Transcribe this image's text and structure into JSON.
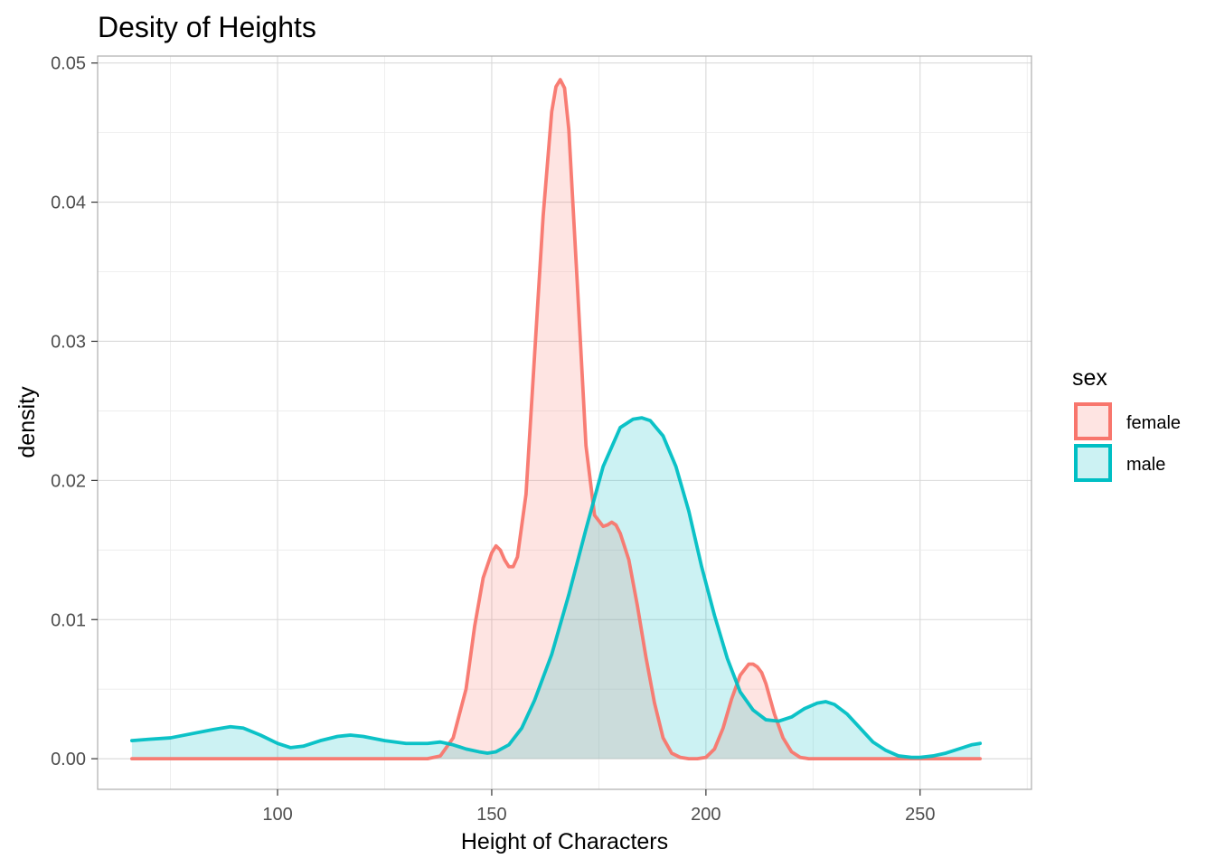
{
  "chart_data": {
    "type": "area",
    "title": "Desity of Heights",
    "xlabel": "Height of Characters",
    "ylabel": "density",
    "xlim": [
      58,
      276
    ],
    "ylim": [
      -0.0022,
      0.0505
    ],
    "xticks": [
      100,
      150,
      200,
      250
    ],
    "xtick_labels": [
      "100",
      "150",
      "200",
      "250"
    ],
    "yticks": [
      0,
      0.01,
      0.02,
      0.03,
      0.04,
      0.05
    ],
    "ytick_labels": [
      "0.00",
      "0.01",
      "0.02",
      "0.03",
      "0.04",
      "0.05"
    ],
    "grid": true,
    "legend": {
      "title": "sex",
      "position": "right",
      "entries": [
        "female",
        "male"
      ]
    },
    "series": [
      {
        "name": "female",
        "color": "#F8766D",
        "fill": "#F8766D",
        "fill_opacity": 0.2,
        "x": [
          66,
          100,
          120,
          135,
          138,
          141,
          144,
          146,
          148,
          150,
          151,
          152,
          153,
          154,
          155,
          156,
          158,
          160,
          162,
          164,
          165,
          166,
          167,
          168,
          170,
          172,
          174,
          176,
          177,
          178,
          179,
          180,
          182,
          184,
          186,
          188,
          190,
          192,
          194,
          196,
          198,
          200,
          202,
          204,
          206,
          208,
          210,
          211,
          212,
          213,
          214,
          215,
          216,
          218,
          220,
          222,
          224,
          230,
          240,
          264
        ],
        "y": [
          0,
          0,
          0,
          0,
          0.0002,
          0.0015,
          0.005,
          0.0095,
          0.013,
          0.0148,
          0.0153,
          0.015,
          0.0143,
          0.0138,
          0.0138,
          0.0145,
          0.019,
          0.029,
          0.039,
          0.0465,
          0.0483,
          0.0488,
          0.0482,
          0.0452,
          0.034,
          0.0225,
          0.0175,
          0.0167,
          0.0168,
          0.017,
          0.0168,
          0.0162,
          0.0143,
          0.011,
          0.0073,
          0.004,
          0.0015,
          0.0004,
          0.0001,
          0,
          0,
          0.0001,
          0.0007,
          0.0022,
          0.0043,
          0.006,
          0.0068,
          0.0068,
          0.0066,
          0.0062,
          0.0054,
          0.0043,
          0.0032,
          0.0015,
          0.0005,
          0.0001,
          0,
          0,
          0,
          0
        ]
      },
      {
        "name": "male",
        "color": "#00BFC4",
        "fill": "#00BFC4",
        "fill_opacity": 0.2,
        "x": [
          66,
          70,
          75,
          80,
          85,
          89,
          92,
          96,
          100,
          103,
          106,
          110,
          114,
          117,
          120,
          125,
          130,
          135,
          138,
          141,
          144,
          147,
          149,
          151,
          154,
          157,
          160,
          164,
          168,
          172,
          176,
          180,
          183,
          185,
          187,
          190,
          193,
          196,
          199,
          202,
          205,
          208,
          211,
          214,
          217,
          220,
          223,
          226,
          228,
          230,
          233,
          236,
          239,
          242,
          245,
          248,
          250,
          253,
          256,
          259,
          262,
          264
        ],
        "y": [
          0.0013,
          0.0014,
          0.0015,
          0.0018,
          0.0021,
          0.0023,
          0.0022,
          0.0017,
          0.0011,
          0.0008,
          0.0009,
          0.0013,
          0.0016,
          0.0017,
          0.0016,
          0.0013,
          0.0011,
          0.0011,
          0.0012,
          0.001,
          0.0007,
          0.0005,
          0.0004,
          0.0005,
          0.001,
          0.0022,
          0.0042,
          0.0075,
          0.0118,
          0.0165,
          0.021,
          0.0238,
          0.0244,
          0.0245,
          0.0243,
          0.0232,
          0.021,
          0.0178,
          0.0138,
          0.0103,
          0.0072,
          0.0048,
          0.0035,
          0.0028,
          0.0027,
          0.003,
          0.0036,
          0.004,
          0.0041,
          0.0039,
          0.0032,
          0.0022,
          0.0012,
          0.0006,
          0.0002,
          0.0001,
          0.0001,
          0.0002,
          0.0004,
          0.0007,
          0.001,
          0.0011
        ]
      }
    ]
  }
}
